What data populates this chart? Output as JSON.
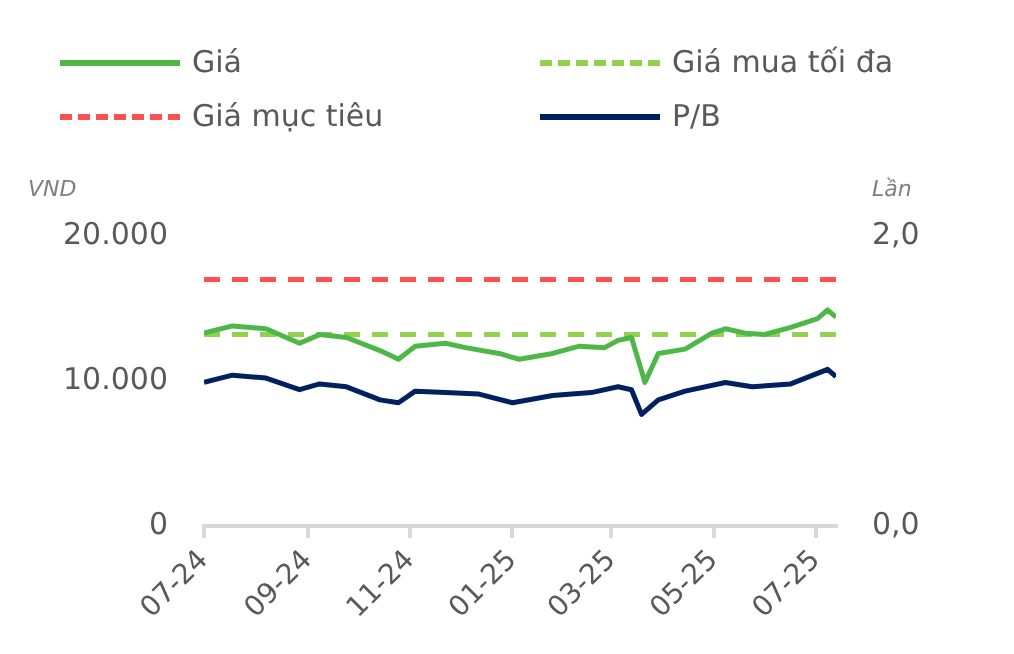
{
  "chart_data": {
    "type": "line",
    "ylabel": "VND",
    "y2label": "Lần",
    "legend": "top",
    "grid": false,
    "marker": "none",
    "xlim": [
      "2024-07-01",
      "2025-07-13"
    ],
    "xticks": [
      {
        "value": "2024-07-01",
        "label": "07-24"
      },
      {
        "value": "2024-09-01",
        "label": "09-24"
      },
      {
        "value": "2024-11-01",
        "label": "11-24"
      },
      {
        "value": "2025-01-01",
        "label": "01-25"
      },
      {
        "value": "2025-03-01",
        "label": "03-25"
      },
      {
        "value": "2025-05-01",
        "label": "05-25"
      },
      {
        "value": "2025-07-01",
        "label": "07-25"
      }
    ],
    "ylim": [
      0,
      20000
    ],
    "yticks": [
      {
        "value": 0,
        "label": "0"
      },
      {
        "value": 10000,
        "label": "10.000"
      },
      {
        "value": 20000,
        "label": "20.000"
      }
    ],
    "y2lim": [
      0,
      2
    ],
    "y2ticks": [
      {
        "value": 0,
        "label": "0,0"
      },
      {
        "value": 2,
        "label": "2,0"
      }
    ],
    "series": [
      {
        "name": "Giá",
        "color": "#4db848",
        "line_style": "solid",
        "x": [
          "2024-07-01",
          "2024-07-18",
          "2024-08-07",
          "2024-08-27",
          "2024-09-08",
          "2024-09-24",
          "2024-10-14",
          "2024-10-25",
          "2024-11-04",
          "2024-11-22",
          "2024-12-04",
          "2024-12-24",
          "2025-01-05",
          "2025-01-25",
          "2025-02-10",
          "2025-02-25",
          "2025-03-05",
          "2025-03-13",
          "2025-03-19",
          "2025-03-21",
          "2025-03-29",
          "2025-04-14",
          "2025-04-30",
          "2025-05-08",
          "2025-05-20",
          "2025-05-31",
          "2025-06-16",
          "2025-07-02",
          "2025-07-08",
          "2025-07-13"
        ],
        "values": [
          13300,
          13800,
          13600,
          12600,
          13200,
          13000,
          12100,
          11500,
          12400,
          12600,
          12300,
          11900,
          11500,
          11900,
          12400,
          12300,
          12800,
          13000,
          10700,
          9900,
          11900,
          12200,
          13300,
          13600,
          13300,
          13200,
          13700,
          14300,
          14900,
          14400
        ]
      },
      {
        "name": "Giá mua tối đa",
        "color": "#92d050",
        "line_style": "dashed",
        "x": [
          "2024-07-01",
          "2025-07-13"
        ],
        "values": [
          13200,
          13200
        ]
      },
      {
        "name": "Giá mục tiêu",
        "color": "#ff5050",
        "line_style": "dashed",
        "x": [
          "2024-07-01",
          "2025-07-13"
        ],
        "values": [
          17000,
          17000
        ]
      },
      {
        "name": "P/B",
        "color": "#002060",
        "line_style": "solid",
        "axis": "y2",
        "x": [
          "2024-07-01",
          "2024-07-18",
          "2024-08-07",
          "2024-08-27",
          "2024-09-08",
          "2024-09-24",
          "2024-10-14",
          "2024-10-25",
          "2024-11-04",
          "2024-11-22",
          "2024-12-12",
          "2025-01-01",
          "2025-01-25",
          "2025-02-17",
          "2025-03-05",
          "2025-03-13",
          "2025-03-19",
          "2025-03-29",
          "2025-04-14",
          "2025-05-08",
          "2025-05-24",
          "2025-06-16",
          "2025-07-08",
          "2025-07-13"
        ],
        "values": [
          0.99,
          1.04,
          1.02,
          0.94,
          0.98,
          0.96,
          0.87,
          0.85,
          0.93,
          0.92,
          0.91,
          0.85,
          0.9,
          0.92,
          0.96,
          0.94,
          0.77,
          0.87,
          0.93,
          0.99,
          0.96,
          0.98,
          1.08,
          1.03
        ]
      }
    ]
  }
}
